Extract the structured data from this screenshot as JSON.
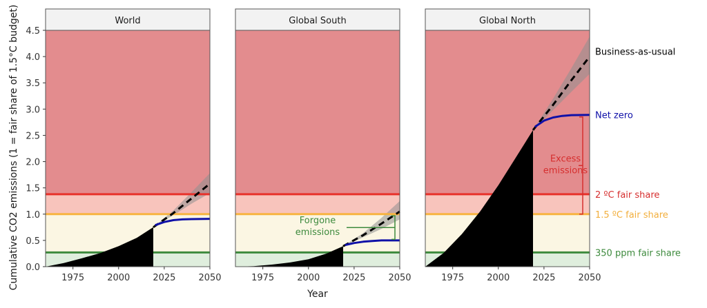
{
  "chart_data": {
    "type": "area",
    "xlabel": "Year",
    "ylabel": "Cumulative CO2 emissions (1 = fair share of 1.5°C budget)",
    "xlim": [
      1960,
      2050
    ],
    "ylim": [
      0,
      4.5
    ],
    "x_ticks": [
      "1975",
      "2000",
      "2025",
      "2050"
    ],
    "y_ticks": [
      "0.0",
      "0.5",
      "1.0",
      "1.5",
      "2.0",
      "2.5",
      "3.0",
      "3.5",
      "4.0",
      "4.5"
    ],
    "panels": [
      {
        "title": "World",
        "historical": {
          "x": [
            1960,
            1970,
            1980,
            1990,
            2000,
            2010,
            2019
          ],
          "y": [
            0,
            0.07,
            0.16,
            0.26,
            0.39,
            0.55,
            0.75
          ]
        },
        "business_as_usual": {
          "x": [
            2019,
            2030,
            2040,
            2050
          ],
          "y": [
            0.75,
            1.02,
            1.3,
            1.58
          ]
        },
        "bau_band": {
          "x": [
            2019,
            2030,
            2040,
            2050
          ],
          "low": [
            0.75,
            0.98,
            1.2,
            1.4
          ],
          "high": [
            0.75,
            1.07,
            1.42,
            1.78
          ]
        },
        "net_zero": {
          "x": [
            2020,
            2025,
            2030,
            2035,
            2040,
            2050
          ],
          "y": [
            0.79,
            0.85,
            0.885,
            0.9,
            0.905,
            0.91
          ]
        }
      },
      {
        "title": "Global South",
        "historical": {
          "x": [
            1960,
            1970,
            1980,
            1990,
            2000,
            2010,
            2019
          ],
          "y": [
            0,
            0.01,
            0.04,
            0.08,
            0.14,
            0.25,
            0.39
          ]
        },
        "business_as_usual": {
          "x": [
            2019,
            2030,
            2040,
            2050
          ],
          "y": [
            0.39,
            0.6,
            0.82,
            1.05
          ]
        },
        "bau_band": {
          "x": [
            2019,
            2030,
            2040,
            2050
          ],
          "low": [
            0.39,
            0.56,
            0.72,
            0.9
          ],
          "high": [
            0.39,
            0.64,
            0.93,
            1.25
          ]
        },
        "net_zero": {
          "x": [
            2020,
            2025,
            2030,
            2035,
            2040,
            2050
          ],
          "y": [
            0.41,
            0.45,
            0.475,
            0.49,
            0.5,
            0.5
          ]
        }
      },
      {
        "title": "Global North",
        "historical": {
          "x": [
            1960,
            1970,
            1980,
            1990,
            2000,
            2010,
            2019
          ],
          "y": [
            0,
            0.26,
            0.62,
            1.05,
            1.55,
            2.1,
            2.6
          ]
        },
        "business_as_usual": {
          "x": [
            2019,
            2030,
            2040,
            2050
          ],
          "y": [
            2.6,
            3.08,
            3.55,
            4.0
          ]
        },
        "bau_band": {
          "x": [
            2019,
            2030,
            2040,
            2050
          ],
          "low": [
            2.6,
            2.98,
            3.33,
            3.67
          ],
          "high": [
            2.6,
            3.2,
            3.78,
            4.38
          ]
        },
        "net_zero": {
          "x": [
            2020,
            2025,
            2030,
            2035,
            2040,
            2050
          ],
          "y": [
            2.66,
            2.78,
            2.84,
            2.87,
            2.885,
            2.89
          ]
        }
      }
    ],
    "thresholds": [
      {
        "name": "2 ºC fair share",
        "value": 1.38,
        "color": "#e8312a"
      },
      {
        "name": "1.5 ºC fair share",
        "value": 1.0,
        "color": "#f7b340"
      },
      {
        "name": "350 ppm fair share",
        "value": 0.27,
        "color": "#3d8a3d"
      }
    ],
    "zones": [
      {
        "from": 0,
        "to": 0.27,
        "color": "#dfeedd"
      },
      {
        "from": 0.27,
        "to": 1.0,
        "color": "#fbf6e3"
      },
      {
        "from": 1.0,
        "to": 1.38,
        "color": "#f8c4bc"
      },
      {
        "from": 1.38,
        "to": 4.5,
        "color": "#e38c8e"
      }
    ],
    "right_labels": [
      {
        "text": "Business-as-usual",
        "value": 4.1,
        "color": "#000000"
      },
      {
        "text": "Net zero",
        "value": 2.89,
        "color": "#0f10a8"
      },
      {
        "text": "2 ºC fair share",
        "value": 1.38,
        "color": "#d62e2e"
      },
      {
        "text": "1.5 ºC fair share",
        "value": 1.0,
        "color": "#f2ae3c"
      },
      {
        "text": "350 ppm fair share",
        "value": 0.27,
        "color": "#3d8a3d"
      }
    ],
    "annotations": [
      {
        "panel": "Global North",
        "text_lines": [
          "Excess",
          "emissions"
        ],
        "from": 1.0,
        "to": 2.85,
        "color": "#d62e2e"
      },
      {
        "panel": "Global South",
        "text_lines": [
          "Forgone",
          "emissions"
        ],
        "from": 0.52,
        "to": 0.97,
        "color": "#3d8a3d"
      }
    ],
    "colors": {
      "historical": "#000000",
      "bau_line": "#000000",
      "bau_band": "#8f8f8f",
      "net_zero": "#0f10a8",
      "strip": "#f2f2f2",
      "frame": "#555555"
    },
    "grid": false,
    "legend": "none"
  }
}
